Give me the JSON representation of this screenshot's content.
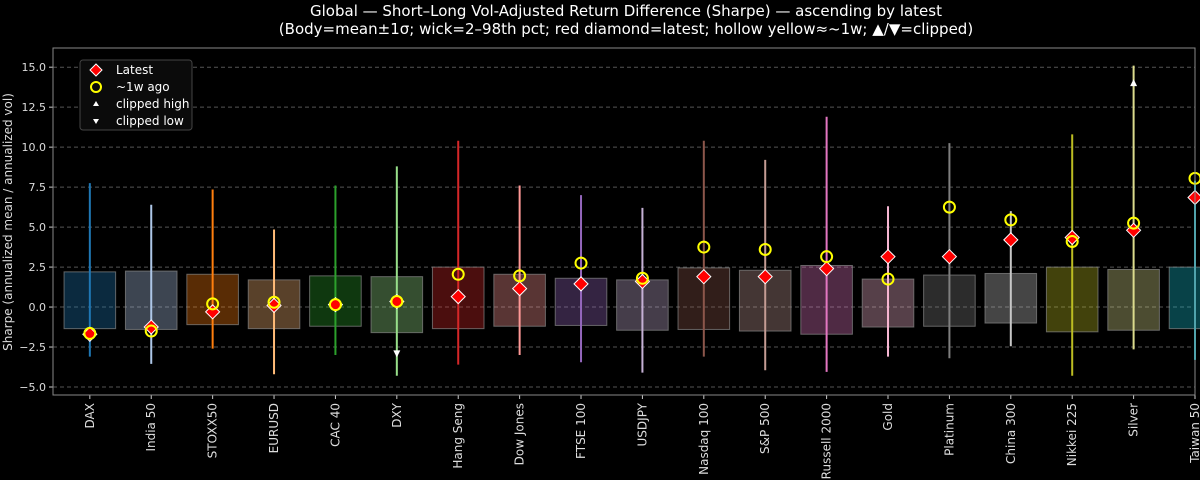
{
  "chart_data": {
    "type": "candlestick-range",
    "title": "Global — Short–Long Vol-Adjusted Return Difference (Sharpe) — ascending by latest",
    "subtitle": "(Body=mean±1σ; wick=2–98th pct; red diamond=latest; hollow yellow≈~1w; ▲/▼=clipped)",
    "ylabel": "Sharpe (annualized mean / annualized vol)",
    "xlabel": "",
    "ylim": [
      -5.5,
      16.2
    ],
    "yticks": [
      -5.0,
      -2.5,
      0.0,
      2.5,
      5.0,
      7.5,
      10.0,
      12.5,
      15.0
    ],
    "grid": true,
    "legend": {
      "placement": "top-left",
      "entries": [
        {
          "label": "Latest",
          "marker": "red-diamond"
        },
        {
          "label": "~1w ago",
          "marker": "hollow-yellow-circle"
        },
        {
          "label": "clipped high",
          "marker": "white-triangle-up"
        },
        {
          "label": "clipped low",
          "marker": "white-triangle-down"
        }
      ]
    },
    "colors": {
      "latest": "#ff0000",
      "week_ago": "#ffff00",
      "clipped": "#ffffff",
      "background": "#000000",
      "grid": "#555555"
    },
    "categories": [
      "DAX",
      "India 50",
      "STOXX50",
      "EURUSD",
      "CAC 40",
      "DXY",
      "Hang Seng",
      "Dow Jones",
      "FTSE 100",
      "USDJPY",
      "Nasdaq 100",
      "S&P 500",
      "Russell 2000",
      "Gold",
      "Platinum",
      "China 300",
      "Nikkei 225",
      "Silver",
      "Taiwan 50"
    ],
    "series_colors": [
      "#1f77b4",
      "#aec7e8",
      "#ff7f0e",
      "#ffbb78",
      "#2ca02c",
      "#98df8a",
      "#d62728",
      "#ff9896",
      "#9467bd",
      "#c5b0d5",
      "#8c564b",
      "#c49c94",
      "#e377c2",
      "#f7b6d2",
      "#7f7f7f",
      "#c7c7c7",
      "#bcbd22",
      "#dbdb8d",
      "#17becf"
    ],
    "body_high": [
      2.2,
      2.25,
      2.05,
      1.7,
      1.95,
      1.9,
      2.5,
      2.05,
      1.8,
      1.7,
      2.45,
      2.3,
      2.6,
      1.75,
      2.0,
      2.1,
      2.5,
      2.35,
      2.5
    ],
    "body_low": [
      -1.35,
      -1.4,
      -1.1,
      -1.35,
      -1.2,
      -1.6,
      -1.35,
      -1.2,
      -1.15,
      -1.45,
      -1.4,
      -1.5,
      -1.7,
      -1.25,
      -1.2,
      -1.0,
      -1.55,
      -1.45,
      -1.35
    ],
    "wick_high": [
      7.75,
      6.4,
      7.35,
      4.85,
      7.6,
      8.8,
      10.4,
      7.6,
      7.0,
      6.2,
      10.4,
      9.2,
      11.9,
      6.3,
      10.25,
      6.0,
      10.8,
      15.1,
      7.9
    ],
    "wick_low": [
      -3.1,
      -3.55,
      -2.6,
      -4.2,
      -3.0,
      -4.3,
      -3.6,
      -3.0,
      -3.45,
      -4.1,
      -3.1,
      -3.95,
      -4.05,
      -3.1,
      -3.2,
      -2.45,
      -4.3,
      -2.65,
      -3.3
    ],
    "latest": [
      -1.7,
      -1.25,
      -0.3,
      0.1,
      0.15,
      0.35,
      0.65,
      1.15,
      1.45,
      1.6,
      1.9,
      1.9,
      2.4,
      3.15,
      3.15,
      4.2,
      4.35,
      4.8,
      6.85
    ],
    "week_ago": [
      -1.65,
      -1.5,
      0.2,
      0.3,
      0.15,
      0.35,
      2.05,
      1.95,
      2.75,
      1.8,
      3.75,
      3.6,
      3.15,
      1.75,
      6.25,
      5.45,
      4.1,
      5.25,
      8.05
    ],
    "clipped": [
      {
        "category": "DXY",
        "direction": "low",
        "value": -2.9
      },
      {
        "category": "Silver",
        "direction": "high",
        "value": 14.0
      }
    ]
  }
}
